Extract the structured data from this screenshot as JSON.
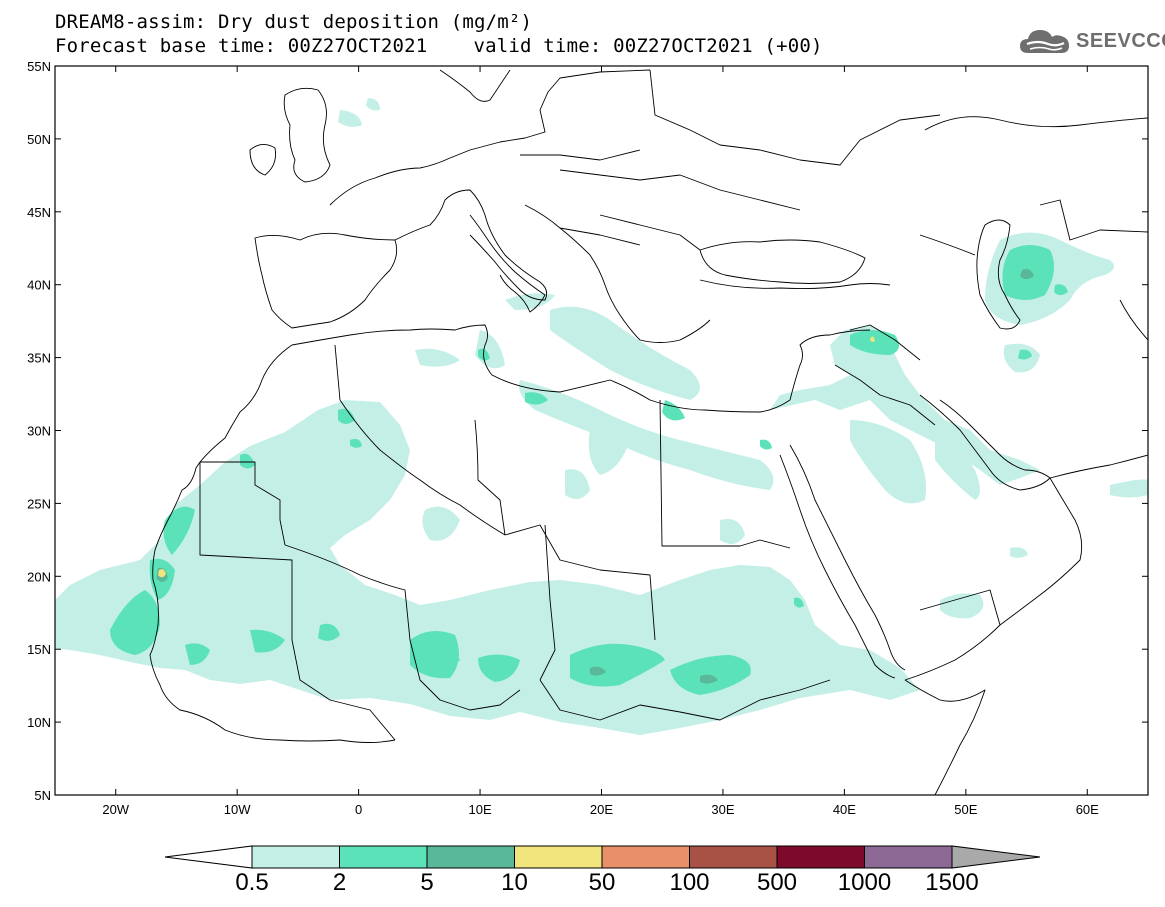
{
  "header": {
    "title_line1": "DREAM8-assim: Dry dust deposition (mg/m²)",
    "forecast_base": "Forecast base time: 00Z27OCT2021",
    "valid_time": "valid time: 00Z27OCT2021 (+00)"
  },
  "logo": {
    "text": "SEEVCCC",
    "icon": "cloud-icon"
  },
  "map": {
    "projection": "lat-lon",
    "lon_range": [
      -25,
      65
    ],
    "lat_range": [
      5,
      55
    ],
    "lat_ticks": [
      "5N",
      "10N",
      "15N",
      "20N",
      "25N",
      "30N",
      "35N",
      "40N",
      "45N",
      "50N",
      "55N"
    ],
    "lon_ticks": [
      "20W",
      "10W",
      "0",
      "10E",
      "20E",
      "30E",
      "40E",
      "50E",
      "60E"
    ]
  },
  "legend": {
    "levels": [
      "0.5",
      "2",
      "5",
      "10",
      "50",
      "100",
      "500",
      "1000",
      "1500"
    ],
    "colors": [
      "#c3efe6",
      "#5ce2b8",
      "#5ab89a",
      "#f1e47c",
      "#e8906a",
      "#a85246",
      "#7d0a2a",
      "#8d6996",
      "#a9a9a9"
    ],
    "below_color": "#ffffff",
    "above_color": "#a9a9a9"
  }
}
